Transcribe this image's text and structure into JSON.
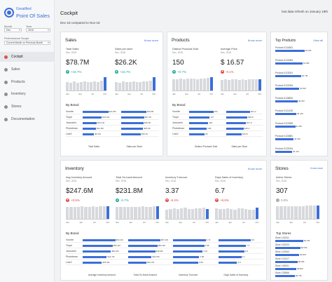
{
  "app": {
    "brand_top": "Greatified",
    "brand_bottom": "Point Of Sales"
  },
  "filters": {
    "month_label": "Month",
    "month_value": "Dec",
    "year_label": "Year",
    "year_value": "2018",
    "scope_label": "Performance Scope",
    "scope_value": "Current Month vs Previous Month"
  },
  "nav": [
    {
      "label": "Cockpit",
      "active": true
    },
    {
      "label": "Sales",
      "active": false
    },
    {
      "label": "Products",
      "active": false
    },
    {
      "label": "Inventory",
      "active": false
    },
    {
      "label": "Stores",
      "active": false
    },
    {
      "label": "Documentation",
      "active": false
    }
  ],
  "header": {
    "title": "Cockpit",
    "subtitle": "Dec-18 compared to Nov-18",
    "refresh": "last data refresh on January 19th"
  },
  "sales": {
    "title": "Sales",
    "know_more": "Know more",
    "kpis": [
      {
        "label": "Total Sales",
        "sub": "Dec, 2018",
        "value": "$78.7M",
        "delta": "+16.7%",
        "dir": "up"
      },
      {
        "label": "Sales per store",
        "sub": "Dec, 2018",
        "value": "$26.2K",
        "delta": "+16.7%",
        "dir": "up"
      }
    ],
    "spark_ticks": [
      "Jan",
      "Apr",
      "Jul",
      "Oct"
    ],
    "by_brand_label": "By Brand",
    "brands": [
      "Voonte",
      "Trupe",
      "Janoochs",
      "Photobean",
      "Line2"
    ],
    "col_values": [
      [
        "$21.8M",
        "$16.1M",
        "$12.1M",
        "$11.3M",
        "$9.7M"
      ],
      [
        "$29.8K",
        "$27.2K",
        "$26.5K",
        "$25.9K",
        "$23.1K"
      ]
    ],
    "col_fill": [
      [
        1.0,
        0.74,
        0.55,
        0.52,
        0.45
      ],
      [
        1.0,
        0.91,
        0.89,
        0.87,
        0.78
      ]
    ],
    "col_footers": [
      "Total Sales",
      "Sales per Store"
    ]
  },
  "products": {
    "title": "Products",
    "know_more": "Know more",
    "kpis": [
      {
        "label": "Distinct Products Sold",
        "sub": "Dec, 2018",
        "value": "150",
        "delta": "+0.7%",
        "dir": "up"
      },
      {
        "label": "Average Price",
        "sub": "Dec, 2018",
        "value": "$ 16.57",
        "delta": "-0.1%",
        "dir": "down"
      }
    ],
    "spark_ticks": [
      "Jan",
      "Apr",
      "Jul",
      "Oct"
    ],
    "by_brand_label": "By Brand",
    "col_values": [
      [
        "150",
        "127",
        "118",
        "109",
        "96"
      ],
      [
        "$21.2",
        "$18.9",
        "$17.6",
        "$15.4",
        "$13.8"
      ]
    ],
    "col_fill": [
      [
        1.0,
        0.85,
        0.79,
        0.73,
        0.64
      ],
      [
        1.0,
        0.89,
        0.83,
        0.73,
        0.65
      ]
    ],
    "col_footers": [
      "Distinct Products Sold",
      "Sales per Store"
    ]
  },
  "top_products": {
    "title": "Top Products",
    "view_all": "View all",
    "items": [
      {
        "name": "Product 0124831",
        "value": "$1.9M",
        "fill": 1.0
      },
      {
        "name": "Product 0122084",
        "value": "$1.8M",
        "fill": 0.93
      },
      {
        "name": "Product 0123001",
        "value": "$1.7M",
        "fill": 0.88
      },
      {
        "name": "Product 0122054",
        "value": "$1.6M",
        "fill": 0.82
      },
      {
        "name": "Product 0128823",
        "value": "$1.5M",
        "fill": 0.77
      },
      {
        "name": "Product 0121430",
        "value": "$1.4M",
        "fill": 0.72
      },
      {
        "name": "Product 0123365",
        "value": "$1.3M",
        "fill": 0.68
      },
      {
        "name": "Product 0120881",
        "value": "$1.2M",
        "fill": 0.63
      },
      {
        "name": "Product 0120004",
        "value": "$1.1M",
        "fill": 0.58
      },
      {
        "name": "Product 0126644",
        "value": "$1.0M",
        "fill": 0.53
      }
    ],
    "footer": "Total Sales"
  },
  "inventory": {
    "title": "Inventory",
    "know_more": "Know more",
    "kpis": [
      {
        "label": "Avg Inventory Amount",
        "sub": "Dec, 2018",
        "value": "$247.6M",
        "delta": "+0.6%",
        "dir": "down"
      },
      {
        "label": "Total On-hand Amount",
        "sub": "Dec, 2018",
        "value": "$231.8M",
        "delta": "-0.7%",
        "dir": "up"
      },
      {
        "label": "Inventory Turnover",
        "sub": "Dec, 2018",
        "value": "3.37",
        "delta": "-6.4%",
        "dir": "down"
      },
      {
        "label": "Days Sales of Inventory",
        "sub": "Dec, 2018",
        "value": "6.7",
        "delta": "+6.6%",
        "dir": "down"
      }
    ],
    "spark_ticks": [
      "Jan",
      "Apr",
      "Jul",
      "Oct"
    ],
    "by_brand_label": "By Brand",
    "col_values": [
      [
        "$60.1M",
        "$55.4M",
        "$52.0M",
        "$44.7M",
        "$35.4M"
      ],
      [
        "$57.2M",
        "$52.0M",
        "$48.3M",
        "$41.6M",
        "$32.7M"
      ],
      [
        "3.74",
        "3.58",
        "3.41",
        "2.98",
        "2.89"
      ],
      [
        "8.6",
        "7.3",
        "6.9",
        "6.1",
        "5.0"
      ]
    ],
    "col_fill": [
      [
        1.0,
        0.92,
        0.87,
        0.74,
        0.59
      ],
      [
        1.0,
        0.91,
        0.84,
        0.73,
        0.57
      ],
      [
        1.0,
        0.96,
        0.91,
        0.8,
        0.77
      ],
      [
        1.0,
        0.85,
        0.8,
        0.71,
        0.58
      ]
    ],
    "col_footers": [
      "Average Inventory Amount",
      "Total On-Hand Amount",
      "Inventory Turnover",
      "Days Sales of Inventory"
    ]
  },
  "stores": {
    "title": "Stores",
    "know_more": "Know more",
    "kpi": {
      "label": "Active Stores",
      "sub": "Dec, 2018",
      "value": "307",
      "delta": "0.0%",
      "dir": "flat"
    },
    "spark_ticks": [
      "Jan",
      "Apr",
      "Jul",
      "Oct"
    ],
    "top_label": "Top Stores",
    "items": [
      {
        "name": "Store 124311",
        "value": "$1.0M",
        "fill": 1.0
      },
      {
        "name": "Store 120223",
        "value": "$0.9M",
        "fill": 0.9
      },
      {
        "name": "Store 122064",
        "value": "$0.9M",
        "fill": 0.86
      },
      {
        "name": "Store 121017",
        "value": "$0.8M",
        "fill": 0.8
      },
      {
        "name": "Store 126001",
        "value": "$0.8M",
        "fill": 0.76
      },
      {
        "name": "Store 125566",
        "value": "$0.7M",
        "fill": 0.7
      }
    ]
  },
  "colors": {
    "accent": "#3b6fd8",
    "up": "#1fa89b",
    "down": "#e0474c",
    "bar_grey": "#d7d9dd"
  }
}
